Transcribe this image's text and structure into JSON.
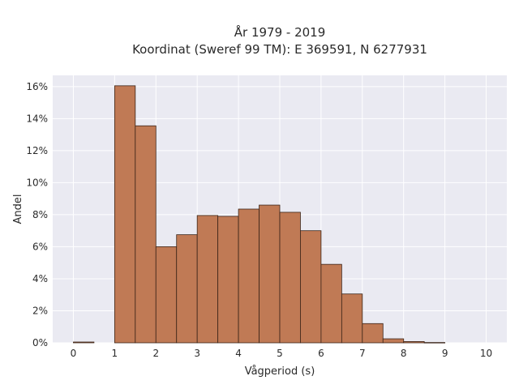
{
  "chart_data": {
    "type": "bar",
    "title_line1": "År 1979 - 2019",
    "title_line2": "Koordinat (Sweref 99 TM): E 369591, N 6277931",
    "xlabel": "Vågperiod (s)",
    "ylabel": "Andel",
    "xlim": [
      -0.5,
      10.5
    ],
    "ylim": [
      0,
      16.7
    ],
    "x_ticks": [
      0,
      1,
      2,
      3,
      4,
      5,
      6,
      7,
      8,
      9,
      10
    ],
    "x_tick_labels": [
      "0",
      "1",
      "2",
      "3",
      "4",
      "5",
      "6",
      "7",
      "8",
      "9",
      "10"
    ],
    "y_ticks": [
      0,
      2,
      4,
      6,
      8,
      10,
      12,
      14,
      16
    ],
    "y_tick_labels": [
      "0%",
      "2%",
      "4%",
      "6%",
      "8%",
      "10%",
      "12%",
      "14%",
      "16%"
    ],
    "bin_width": 0.5,
    "bins": [
      {
        "x0": 0.0,
        "value": 0.05
      },
      {
        "x0": 0.5,
        "value": 0.0
      },
      {
        "x0": 1.0,
        "value": 16.05
      },
      {
        "x0": 1.5,
        "value": 13.55
      },
      {
        "x0": 2.0,
        "value": 6.0
      },
      {
        "x0": 2.5,
        "value": 6.75
      },
      {
        "x0": 3.0,
        "value": 7.95
      },
      {
        "x0": 3.5,
        "value": 7.9
      },
      {
        "x0": 4.0,
        "value": 8.35
      },
      {
        "x0": 4.5,
        "value": 8.6
      },
      {
        "x0": 5.0,
        "value": 8.15
      },
      {
        "x0": 5.5,
        "value": 7.0
      },
      {
        "x0": 6.0,
        "value": 4.9
      },
      {
        "x0": 6.5,
        "value": 3.05
      },
      {
        "x0": 7.0,
        "value": 1.2
      },
      {
        "x0": 7.5,
        "value": 0.25
      },
      {
        "x0": 8.0,
        "value": 0.08
      },
      {
        "x0": 8.5,
        "value": 0.02
      },
      {
        "x0": 9.0,
        "value": 0.0
      },
      {
        "x0": 9.5,
        "value": 0.0
      }
    ],
    "bar_color": "#c07a55",
    "bar_edge_color": "#3b2418",
    "plot_background": "#eaeaf2",
    "grid": true,
    "grid_color": "#ffffff"
  }
}
